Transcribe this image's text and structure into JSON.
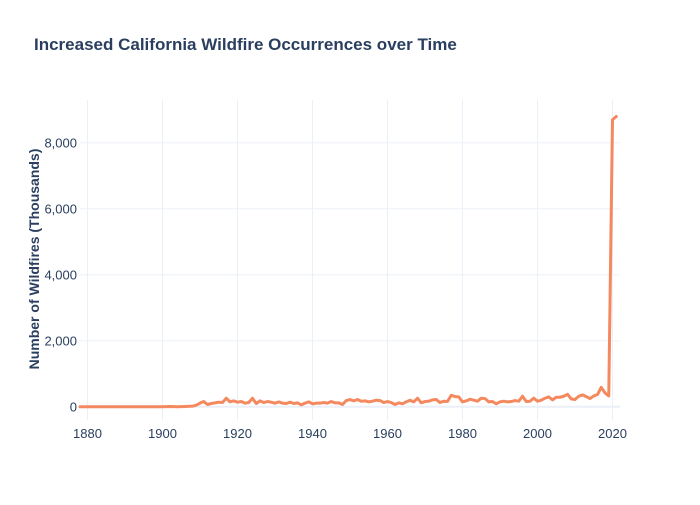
{
  "chart_data": {
    "type": "line",
    "title": "Increased California Wildfire Occurrences over Time",
    "xlabel": "",
    "ylabel": "Number of Wildfires (Thousands)",
    "xlim": [
      1878,
      2022
    ],
    "ylim": [
      -400,
      9300
    ],
    "x_ticks": [
      1880,
      1900,
      1920,
      1940,
      1960,
      1980,
      2000,
      2020
    ],
    "x_tick_labels": [
      "1880",
      "1900",
      "1920",
      "1940",
      "1960",
      "1980",
      "2000",
      "2020"
    ],
    "y_ticks": [
      0,
      2000,
      4000,
      6000,
      8000
    ],
    "y_tick_labels": [
      "0",
      "2,000",
      "4,000",
      "6,000",
      "8,000"
    ],
    "grid": true,
    "series": [
      {
        "name": "Wildfires",
        "color": "#f4895f",
        "x": [
          1878,
          1880,
          1885,
          1890,
          1895,
          1900,
          1902,
          1904,
          1906,
          1908,
          1909,
          1910,
          1911,
          1912,
          1913,
          1914,
          1915,
          1916,
          1917,
          1918,
          1919,
          1920,
          1921,
          1922,
          1923,
          1924,
          1925,
          1926,
          1927,
          1928,
          1929,
          1930,
          1931,
          1932,
          1933,
          1934,
          1935,
          1936,
          1937,
          1938,
          1939,
          1940,
          1941,
          1942,
          1943,
          1944,
          1945,
          1946,
          1947,
          1948,
          1949,
          1950,
          1951,
          1952,
          1953,
          1954,
          1955,
          1956,
          1957,
          1958,
          1959,
          1960,
          1961,
          1962,
          1963,
          1964,
          1965,
          1966,
          1967,
          1968,
          1969,
          1970,
          1971,
          1972,
          1973,
          1974,
          1975,
          1976,
          1977,
          1978,
          1979,
          1980,
          1981,
          1982,
          1983,
          1984,
          1985,
          1986,
          1987,
          1988,
          1989,
          1990,
          1991,
          1992,
          1993,
          1994,
          1995,
          1996,
          1997,
          1998,
          1999,
          2000,
          2001,
          2002,
          2003,
          2004,
          2005,
          2006,
          2007,
          2008,
          2009,
          2010,
          2011,
          2012,
          2013,
          2014,
          2015,
          2016,
          2017,
          2018,
          2019,
          2020,
          2021
        ],
        "values": [
          0,
          0,
          0,
          0,
          0,
          0,
          10,
          0,
          10,
          20,
          50,
          110,
          160,
          70,
          100,
          120,
          140,
          130,
          260,
          150,
          180,
          140,
          160,
          110,
          130,
          260,
          100,
          180,
          130,
          160,
          140,
          110,
          150,
          110,
          100,
          140,
          100,
          120,
          60,
          110,
          150,
          90,
          110,
          110,
          130,
          110,
          160,
          120,
          120,
          70,
          190,
          220,
          180,
          220,
          170,
          180,
          150,
          170,
          200,
          190,
          130,
          160,
          130,
          70,
          120,
          90,
          150,
          200,
          150,
          260,
          120,
          160,
          170,
          210,
          220,
          130,
          170,
          160,
          350,
          310,
          300,
          150,
          180,
          230,
          200,
          170,
          260,
          250,
          150,
          160,
          90,
          150,
          170,
          150,
          160,
          190,
          170,
          320,
          160,
          170,
          260,
          170,
          200,
          260,
          300,
          210,
          290,
          290,
          320,
          380,
          240,
          220,
          320,
          360,
          310,
          250,
          330,
          370,
          590,
          420,
          330,
          8700,
          8800
        ]
      }
    ]
  }
}
